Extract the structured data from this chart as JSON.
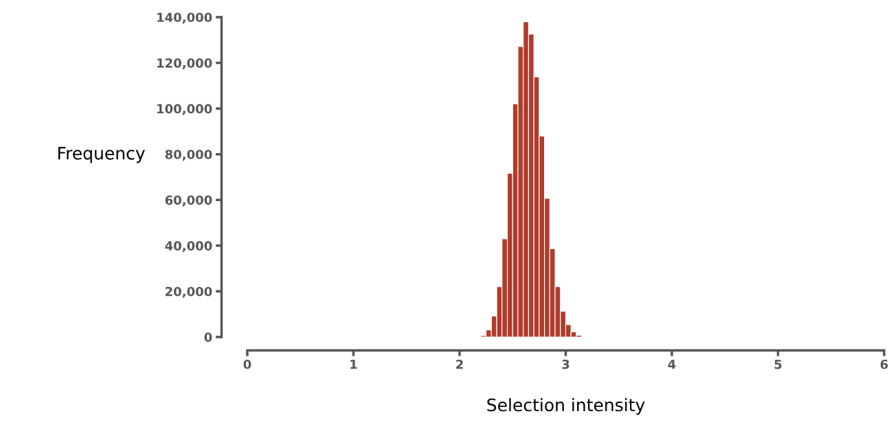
{
  "chart_data": {
    "type": "histogram",
    "xlabel": "Selection intensity",
    "ylabel": "Frequency",
    "bins": [
      2.2,
      2.25,
      2.3,
      2.35,
      2.4,
      2.45,
      2.5,
      2.55,
      2.6,
      2.65,
      2.7,
      2.75,
      2.8,
      2.85,
      2.9,
      2.95,
      3.0,
      3.05,
      3.1,
      3.15
    ],
    "values": [
      600,
      3100,
      9200,
      22000,
      43000,
      71700,
      102100,
      127200,
      138000,
      132600,
      113900,
      88000,
      60700,
      38700,
      22000,
      11300,
      5400,
      2300,
      800
    ],
    "color": "#b03c2c",
    "xlim": [
      0,
      6
    ],
    "xticks": [
      0,
      1,
      2,
      3,
      4,
      5,
      6
    ],
    "ylim": [
      0,
      140000
    ],
    "yticks": [
      {
        "value": 0,
        "label": "0"
      },
      {
        "value": 20000,
        "label": "20,000"
      },
      {
        "value": 40000,
        "label": "40,000"
      },
      {
        "value": 60000,
        "label": "60,000"
      },
      {
        "value": 80000,
        "label": "80,000"
      },
      {
        "value": 100000,
        "label": "100,000"
      },
      {
        "value": 120000,
        "label": "120,000"
      },
      {
        "value": 140000,
        "label": "140,000"
      }
    ],
    "grid": false
  }
}
